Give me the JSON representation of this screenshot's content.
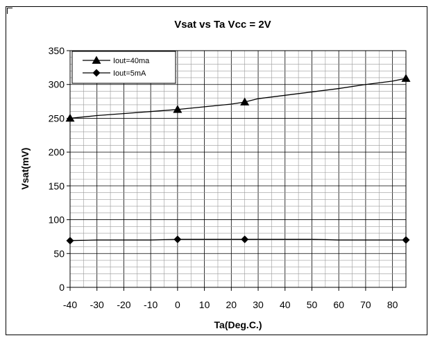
{
  "chart_data": {
    "type": "line",
    "title": "Vsat vs Ta Vcc = 2V",
    "xlabel": "Ta(Deg.C.)",
    "ylabel": "Vsat(mV)",
    "xlim": [
      -40,
      85
    ],
    "ylim": [
      0,
      350
    ],
    "x_ticks": [
      "-40",
      "-30",
      "-20",
      "-10",
      "0",
      "10",
      "20",
      "30",
      "40",
      "50",
      "60",
      "70",
      "80"
    ],
    "y_ticks": [
      "0",
      "50",
      "100",
      "150",
      "200",
      "250",
      "300",
      "350"
    ],
    "grid": true,
    "legend_position": "top-left",
    "series": [
      {
        "name": "Iout=40ma",
        "marker": "triangle",
        "color": "#000000",
        "x": [
          -40,
          -30,
          -20,
          -10,
          0,
          10,
          20,
          25,
          30,
          40,
          50,
          60,
          70,
          80,
          85
        ],
        "y": [
          250,
          254,
          257,
          260,
          263,
          267,
          271,
          274,
          279,
          284,
          289,
          294,
          300,
          305,
          309
        ],
        "marked_x": [
          -40,
          0,
          25,
          85
        ]
      },
      {
        "name": "Iout=5mA",
        "marker": "diamond",
        "color": "#000000",
        "x": [
          -40,
          -30,
          -20,
          -10,
          0,
          10,
          20,
          25,
          30,
          40,
          50,
          60,
          70,
          80,
          85
        ],
        "y": [
          69,
          70,
          70,
          70,
          71,
          71,
          71,
          71,
          71,
          71,
          71,
          70,
          70,
          70,
          70
        ],
        "marked_x": [
          -40,
          0,
          25,
          85
        ]
      }
    ]
  }
}
